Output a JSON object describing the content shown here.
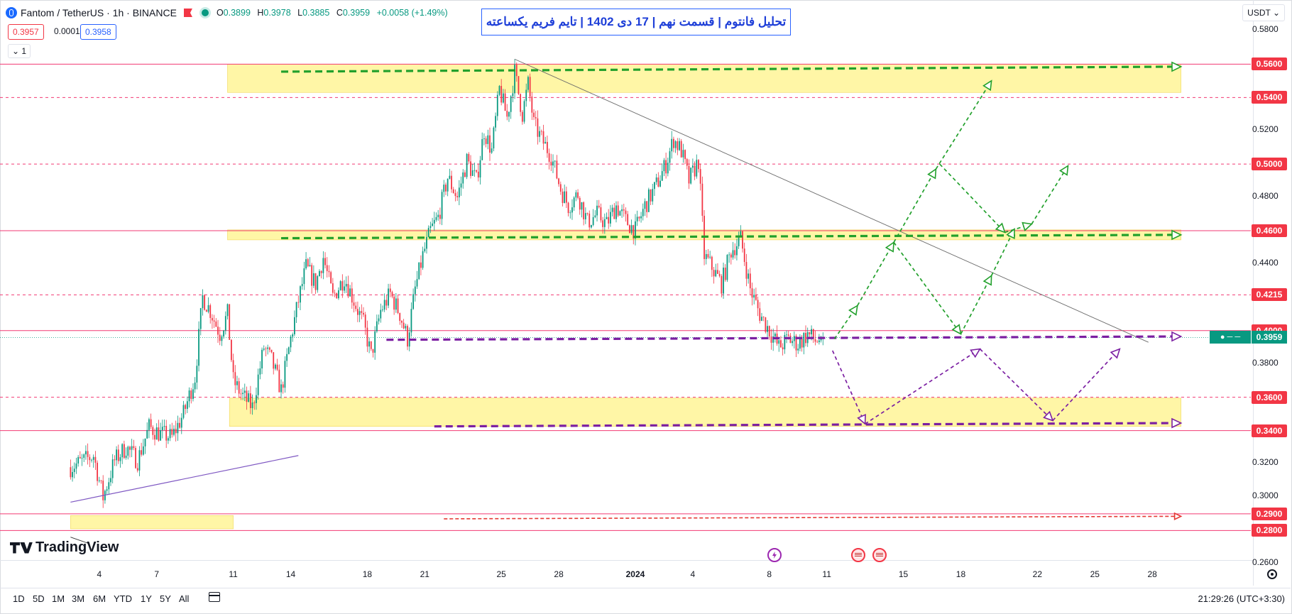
{
  "header": {
    "symbol": "Fantom / TetherUS · 1h · BINANCE",
    "ohlc": {
      "open_label": "O",
      "open": "0.3899",
      "high_label": "H",
      "high": "0.3978",
      "low_label": "L",
      "low": "0.3885",
      "close_label": "C",
      "close": "0.3959",
      "change": "+0.0058 (+1.49%)"
    },
    "bid": "0.3957",
    "spread": "0.0001",
    "ask": "0.3958",
    "lines_toggle": "1",
    "currency": "USDT"
  },
  "annotation_title": "تحلیل فانتوم | قسمت نهم | 17 دی 1402 | تایم فریم یکساعته",
  "clock": "21:29:26 (UTC+3:30)",
  "logo_text": "TradingView",
  "range_buttons": [
    "1D",
    "5D",
    "1M",
    "3M",
    "6M",
    "YTD",
    "1Y",
    "5Y",
    "All"
  ],
  "icons": [
    "symbol-logo-icon",
    "flag-icon",
    "live-dot-icon",
    "calendar-icon",
    "settings-icon",
    "event-icon",
    "us-flag-icon"
  ],
  "colors": {
    "up": "#089981",
    "down": "#f23645",
    "zone": "#fff176",
    "green_arrow": "#22a02c",
    "purple_arrow": "#7b1fa2",
    "red_arrow": "#e53935",
    "title_blue": "#2962ff"
  },
  "chart_data": {
    "type": "candlestick",
    "y_range": [
      0.255,
      0.59
    ],
    "y_ticks": [
      "0.5800",
      "0.5600",
      "0.5400",
      "0.5200",
      "0.5000",
      "0.4800",
      "0.4600",
      "0.4400",
      "0.4215",
      "0.4000",
      "0.3959",
      "0.3800",
      "0.3600",
      "0.3400",
      "0.3200",
      "0.3000",
      "0.2900",
      "0.2800",
      "0.2600"
    ],
    "x_ticks": [
      {
        "label": "4",
        "day": -27
      },
      {
        "label": "7",
        "day": -24
      },
      {
        "label": "11",
        "day": -20
      },
      {
        "label": "14",
        "day": -17
      },
      {
        "label": "18",
        "day": -13
      },
      {
        "label": "21",
        "day": -10
      },
      {
        "label": "25",
        "day": -6
      },
      {
        "label": "28",
        "day": -3
      },
      {
        "label": "2024",
        "day": 1
      },
      {
        "label": "4",
        "day": 4
      },
      {
        "label": "8",
        "day": 8
      },
      {
        "label": "11",
        "day": 11
      },
      {
        "label": "15",
        "day": 15
      },
      {
        "label": "18",
        "day": 18
      },
      {
        "label": "22",
        "day": 22
      },
      {
        "label": "25",
        "day": 25
      },
      {
        "label": "28",
        "day": 28
      }
    ],
    "levels": [
      {
        "price": 0.56,
        "label": "0.5600",
        "style": "solid"
      },
      {
        "price": 0.54,
        "label": "0.5400",
        "style": "dashed"
      },
      {
        "price": 0.5,
        "label": "0.5000",
        "style": "dashed"
      },
      {
        "price": 0.46,
        "label": "0.4600",
        "style": "solid"
      },
      {
        "price": 0.4215,
        "label": "0.4215",
        "style": "dashed"
      },
      {
        "price": 0.4,
        "label": "0.4000",
        "style": "solid"
      },
      {
        "price": 0.36,
        "label": "0.3600",
        "style": "dashed"
      },
      {
        "price": 0.34,
        "label": "0.3400",
        "style": "solid"
      },
      {
        "price": 0.29,
        "label": "0.2900",
        "style": "solid"
      },
      {
        "price": 0.28,
        "label": "0.2800",
        "style": "solid"
      }
    ],
    "last_price": 0.3959,
    "last_price_label": "0.3959",
    "zones": [
      {
        "day_from": -20.3,
        "day_to": 29.5,
        "top": 0.56,
        "bottom": 0.543
      },
      {
        "day_from": -20.3,
        "day_to": 29.5,
        "top": 0.4605,
        "bottom": 0.4545
      },
      {
        "day_from": -20.2,
        "day_to": 29.5,
        "top": 0.3595,
        "bottom": 0.3425
      },
      {
        "day_from": -28.5,
        "day_to": -20.0,
        "top": 0.289,
        "bottom": 0.281
      }
    ],
    "price_path": [
      [
        -28.5,
        0.318
      ],
      [
        -27.8,
        0.322
      ],
      [
        -27.3,
        0.325
      ],
      [
        -26.8,
        0.3
      ],
      [
        -26.2,
        0.322
      ],
      [
        -25.6,
        0.33
      ],
      [
        -25.0,
        0.322
      ],
      [
        -24.4,
        0.342
      ],
      [
        -23.8,
        0.338
      ],
      [
        -23.2,
        0.336
      ],
      [
        -22.6,
        0.35
      ],
      [
        -22.0,
        0.372
      ],
      [
        -21.6,
        0.42
      ],
      [
        -21.2,
        0.412
      ],
      [
        -20.7,
        0.398
      ],
      [
        -20.3,
        0.41
      ],
      [
        -20.0,
        0.37
      ],
      [
        -19.6,
        0.362
      ],
      [
        -19.0,
        0.354
      ],
      [
        -18.4,
        0.39
      ],
      [
        -18.0,
        0.382
      ],
      [
        -17.5,
        0.364
      ],
      [
        -17.0,
        0.395
      ],
      [
        -16.6,
        0.418
      ],
      [
        -16.2,
        0.438
      ],
      [
        -15.7,
        0.428
      ],
      [
        -15.3,
        0.444
      ],
      [
        -14.8,
        0.42
      ],
      [
        -14.2,
        0.432
      ],
      [
        -13.7,
        0.418
      ],
      [
        -13.2,
        0.404
      ],
      [
        -12.8,
        0.385
      ],
      [
        -12.3,
        0.412
      ],
      [
        -11.8,
        0.422
      ],
      [
        -11.3,
        0.41
      ],
      [
        -10.9,
        0.395
      ],
      [
        -10.5,
        0.425
      ],
      [
        -10.1,
        0.445
      ],
      [
        -9.7,
        0.46
      ],
      [
        -9.3,
        0.468
      ],
      [
        -8.8,
        0.492
      ],
      [
        -8.3,
        0.48
      ],
      [
        -7.8,
        0.502
      ],
      [
        -7.3,
        0.49
      ],
      [
        -6.9,
        0.52
      ],
      [
        -6.5,
        0.508
      ],
      [
        -6.1,
        0.545
      ],
      [
        -5.7,
        0.528
      ],
      [
        -5.3,
        0.555
      ],
      [
        -4.9,
        0.53
      ],
      [
        -4.6,
        0.548
      ],
      [
        -4.3,
        0.524
      ],
      [
        -3.9,
        0.515
      ],
      [
        -3.4,
        0.505
      ],
      [
        -2.9,
        0.485
      ],
      [
        -2.5,
        0.475
      ],
      [
        -2.0,
        0.482
      ],
      [
        -1.5,
        0.465
      ],
      [
        -1.0,
        0.47
      ],
      [
        -0.5,
        0.464
      ],
      [
        0.0,
        0.475
      ],
      [
        0.5,
        0.466
      ],
      [
        1.0,
        0.46
      ],
      [
        1.5,
        0.475
      ],
      [
        2.0,
        0.485
      ],
      [
        2.6,
        0.5
      ],
      [
        3.0,
        0.515
      ],
      [
        3.4,
        0.508
      ],
      [
        3.8,
        0.49
      ],
      [
        4.3,
        0.502
      ],
      [
        4.6,
        0.445
      ],
      [
        5.0,
        0.438
      ],
      [
        5.5,
        0.428
      ],
      [
        6.0,
        0.448
      ],
      [
        6.5,
        0.455
      ],
      [
        7.0,
        0.425
      ],
      [
        7.5,
        0.41
      ],
      [
        8.0,
        0.4
      ],
      [
        8.5,
        0.39
      ],
      [
        9.0,
        0.395
      ],
      [
        9.5,
        0.392
      ],
      [
        10.0,
        0.398
      ],
      [
        10.4,
        0.394
      ],
      [
        10.8,
        0.3959
      ]
    ],
    "trend_lines": [
      {
        "from": [
          -5.3,
          0.563
        ],
        "to": [
          27.8,
          0.393
        ],
        "color": "#6b6b6b",
        "width": 0.9
      },
      {
        "from": [
          -28.5,
          0.297
        ],
        "to": [
          -16.6,
          0.325
        ],
        "color": "#7e57c2",
        "width": 1.2
      },
      {
        "from": [
          -28.5,
          0.276
        ],
        "to": [
          -27.5,
          0.272
        ],
        "color": "#333333",
        "width": 0.9
      }
    ],
    "dashed_arrows": [
      {
        "from": [
          -17.5,
          0.5555
        ],
        "to": [
          29.5,
          0.5585
        ],
        "color": "#22a02c",
        "width": 3.2,
        "dash": "10 6"
      },
      {
        "from": [
          -17.5,
          0.4555
        ],
        "to": [
          29.5,
          0.4575
        ],
        "color": "#22a02c",
        "width": 3.2,
        "dash": "10 6"
      },
      {
        "from": [
          -12.0,
          0.3945
        ],
        "to": [
          29.5,
          0.3965
        ],
        "color": "#7b1fa2",
        "width": 3.2,
        "dash": "10 6"
      },
      {
        "from": [
          -9.5,
          0.3425
        ],
        "to": [
          29.5,
          0.3445
        ],
        "color": "#7b1fa2",
        "width": 3.2,
        "dash": "10 6"
      },
      {
        "from": [
          -9.0,
          0.287
        ],
        "to": [
          29.5,
          0.2885
        ],
        "color": "#e53935",
        "width": 1.6,
        "dash": "5 3"
      }
    ],
    "scenario_arrows": [
      {
        "color": "#22a02c",
        "points": [
          [
            11.4,
            0.395
          ],
          [
            12.6,
            0.415
          ],
          [
            14.5,
            0.453
          ],
          [
            16.7,
            0.497
          ],
          [
            19.6,
            0.55
          ]
        ]
      },
      {
        "color": "#22a02c",
        "points": [
          [
            14.5,
            0.453
          ],
          [
            18.0,
            0.398
          ],
          [
            19.6,
            0.433
          ],
          [
            20.8,
            0.461
          ]
        ]
      },
      {
        "color": "#22a02c",
        "points": [
          [
            16.9,
            0.5
          ],
          [
            20.3,
            0.459
          ],
          [
            21.7,
            0.464
          ],
          [
            23.6,
            0.499
          ]
        ]
      },
      {
        "color": "#7b1fa2",
        "points": [
          [
            11.3,
            0.388
          ],
          [
            13.0,
            0.344
          ],
          [
            19.0,
            0.389
          ],
          [
            22.8,
            0.346
          ],
          [
            26.3,
            0.389
          ]
        ]
      }
    ]
  }
}
